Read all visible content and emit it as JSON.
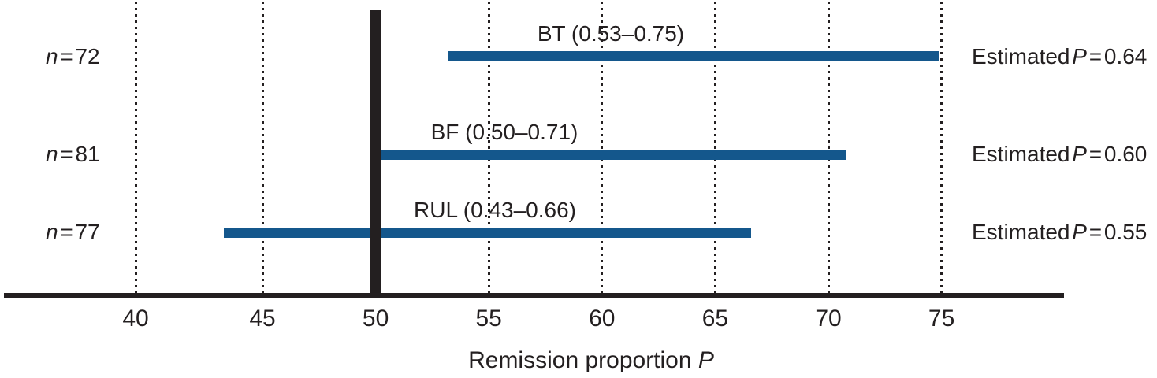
{
  "colors": {
    "bar_blue": "#14578c",
    "ink": "#231f20",
    "background": "#ffffff"
  },
  "chart_data": {
    "type": "bar",
    "subtype": "horizontal_confidence_intervals",
    "title": "",
    "xlabel_text": "Remission proportion ",
    "xlabel_italic": "P",
    "x_ticks": [
      40,
      45,
      50,
      55,
      60,
      65,
      70,
      75
    ],
    "x_tick_labels": [
      "40",
      "45",
      "50",
      "55",
      "60",
      "65",
      "70",
      "75"
    ],
    "xlim": [
      36,
      80
    ],
    "grid": "vertical-dotted",
    "legend": "none",
    "reference_line_x": 50,
    "rows": [
      {
        "group": "BT",
        "n": 72,
        "ci_low": 0.53,
        "ci_high": 0.75,
        "estimate": 0.64,
        "bar_start_pct": 53.2,
        "bar_end_pct": 74.9,
        "ci_label": "BT (0.53–0.75)",
        "n_italic": "n",
        "n_eq": " = 72",
        "est_word": "Estimated ",
        "est_italic": "P",
        "est_eq": " = 0.64"
      },
      {
        "group": "BF",
        "n": 81,
        "ci_low": 0.5,
        "ci_high": 0.71,
        "estimate": 0.6,
        "bar_start_pct": 50.0,
        "bar_end_pct": 70.8,
        "ci_label": "BF (0.50–0.71)",
        "n_italic": "n",
        "n_eq": " = 81",
        "est_word": "Estimated ",
        "est_italic": "P",
        "est_eq": " = 0.60"
      },
      {
        "group": "RUL",
        "n": 77,
        "ci_low": 0.43,
        "ci_high": 0.66,
        "estimate": 0.55,
        "bar_start_pct": 43.3,
        "bar_end_pct": 66.6,
        "ci_label": "RUL (0.43–0.66)",
        "n_italic": "n",
        "n_eq": " = 77",
        "est_word": "Estimated ",
        "est_italic": "P",
        "est_eq": " = 0.55"
      }
    ]
  }
}
